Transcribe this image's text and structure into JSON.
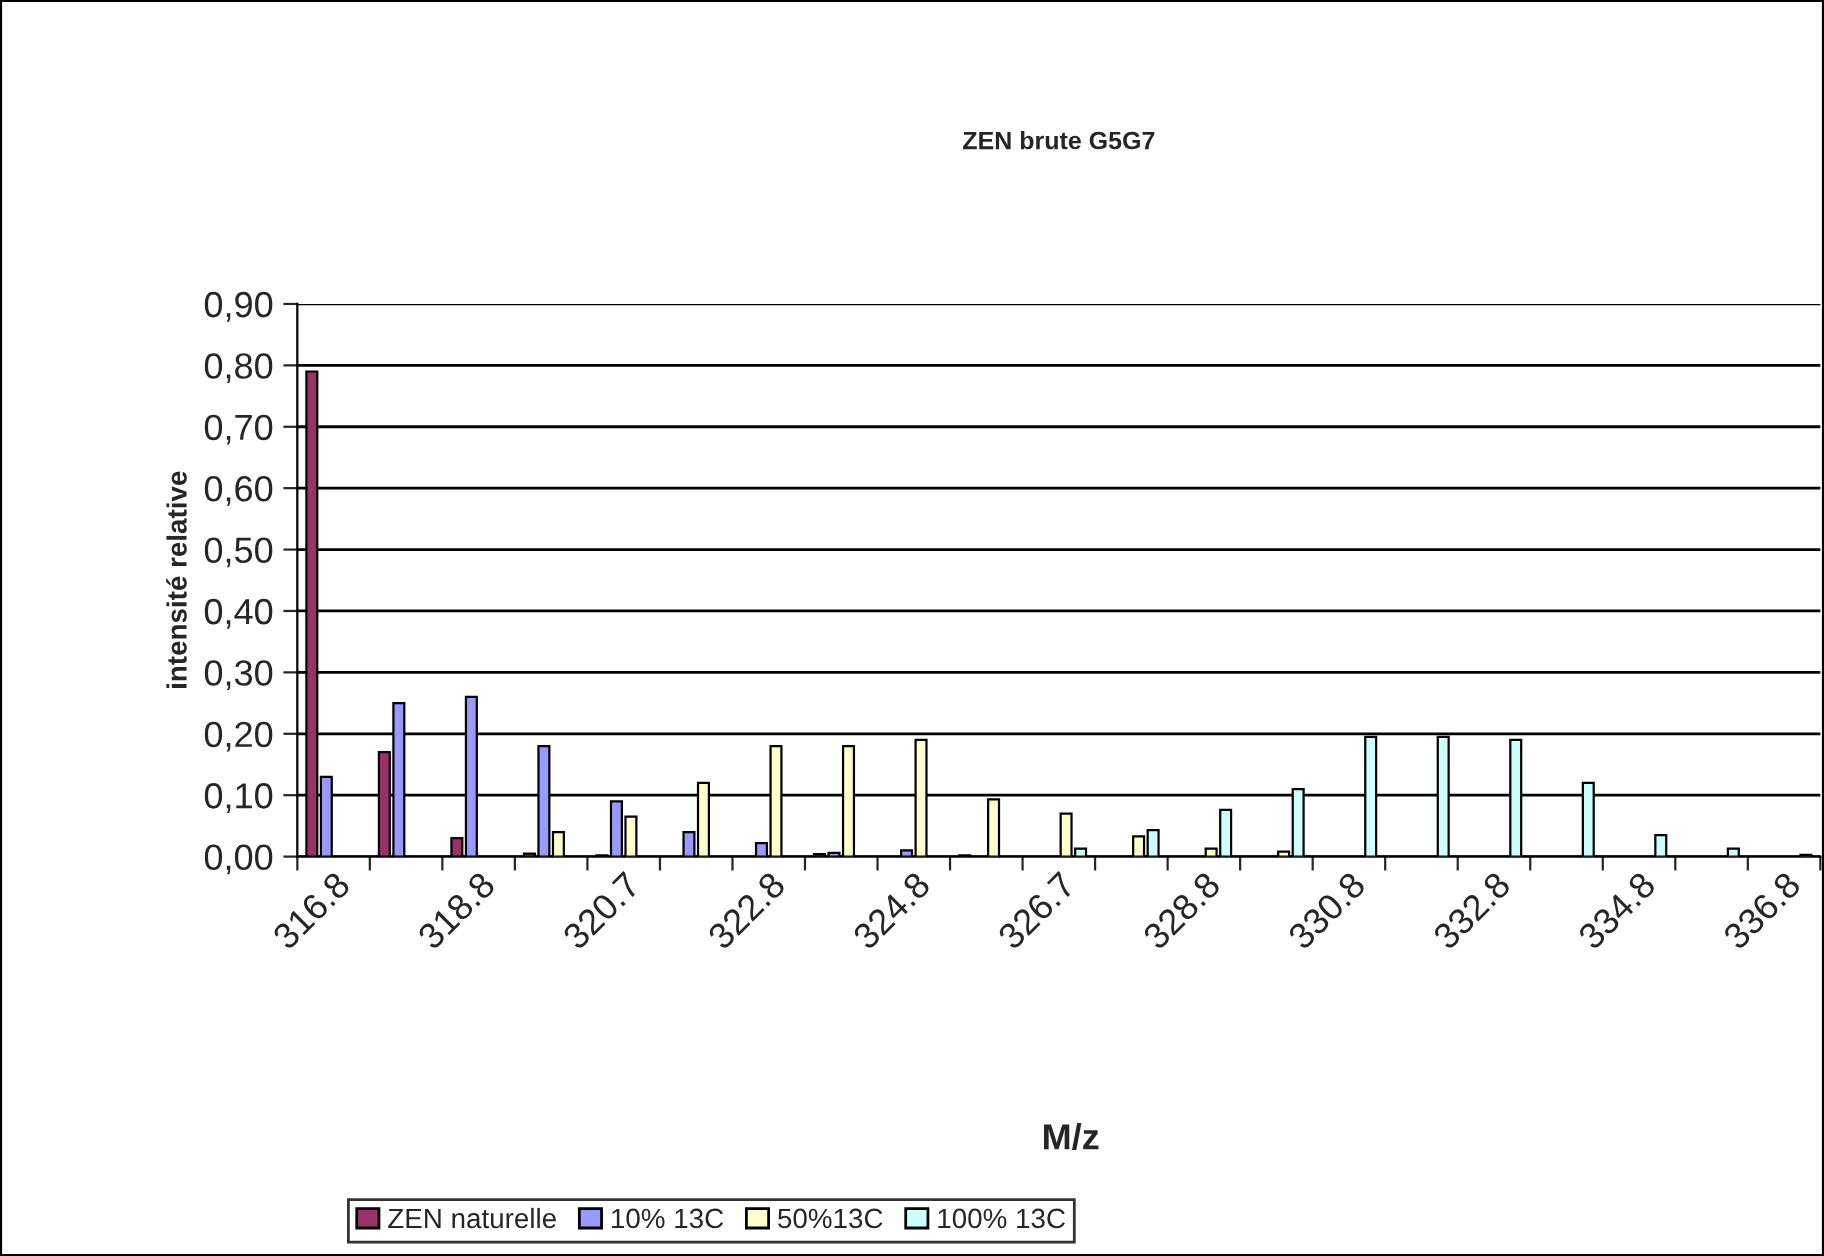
{
  "chart_data": {
    "type": "bar",
    "title": "ZEN brute G5G7",
    "xlabel": "M/z",
    "ylabel": "intensité relative",
    "categories": [
      "316.8",
      null,
      "318.8",
      null,
      "320.7",
      null,
      "322.8",
      null,
      "324.8",
      null,
      "326.7",
      null,
      "328.8",
      null,
      "330.8",
      null,
      "332.8",
      null,
      "334.8",
      null,
      "336.8"
    ],
    "series": [
      {
        "name": "ZEN naturelle",
        "color": "#993366",
        "values": [
          0.79,
          0.17,
          0.03,
          0.005,
          0.002,
          null,
          null,
          0.004,
          null,
          0.002,
          null,
          null,
          null,
          null,
          null,
          null,
          null,
          null,
          null,
          null,
          null
        ]
      },
      {
        "name": "10% 13C",
        "color": "#9999ff",
        "values": [
          0.13,
          0.25,
          0.26,
          0.18,
          0.09,
          0.04,
          0.022,
          0.006,
          0.01,
          null,
          null,
          null,
          null,
          null,
          null,
          null,
          null,
          null,
          null,
          null,
          null
        ]
      },
      {
        "name": "50%13C",
        "color": "#ffffcc",
        "values": [
          null,
          null,
          null,
          0.04,
          0.065,
          0.12,
          0.18,
          0.18,
          0.19,
          0.093,
          0.07,
          0.033,
          0.013,
          0.008,
          null,
          null,
          null,
          null,
          null,
          null,
          null
        ]
      },
      {
        "name": "100% 13C",
        "color": "#ccffff",
        "values": [
          null,
          null,
          null,
          null,
          null,
          null,
          null,
          null,
          null,
          null,
          0.013,
          0.043,
          0.076,
          0.11,
          0.195,
          0.195,
          0.19,
          0.12,
          0.035,
          0.013,
          0.003
        ]
      }
    ],
    "ylim": [
      0,
      0.9
    ],
    "yticks": [
      {
        "value": 0,
        "label": "0,00"
      },
      {
        "value": 0.1,
        "label": "0,10"
      },
      {
        "value": 0.2,
        "label": "0,20"
      },
      {
        "value": 0.3,
        "label": "0,30"
      },
      {
        "value": 0.4,
        "label": "0,40"
      },
      {
        "value": 0.5,
        "label": "0,50"
      },
      {
        "value": 0.6,
        "label": "0,60"
      },
      {
        "value": 0.7,
        "label": "0,70"
      },
      {
        "value": 0.8,
        "label": "0,80"
      },
      {
        "value": 0.9,
        "label": "0,90"
      }
    ],
    "grid": "y",
    "legend": "bottom"
  }
}
